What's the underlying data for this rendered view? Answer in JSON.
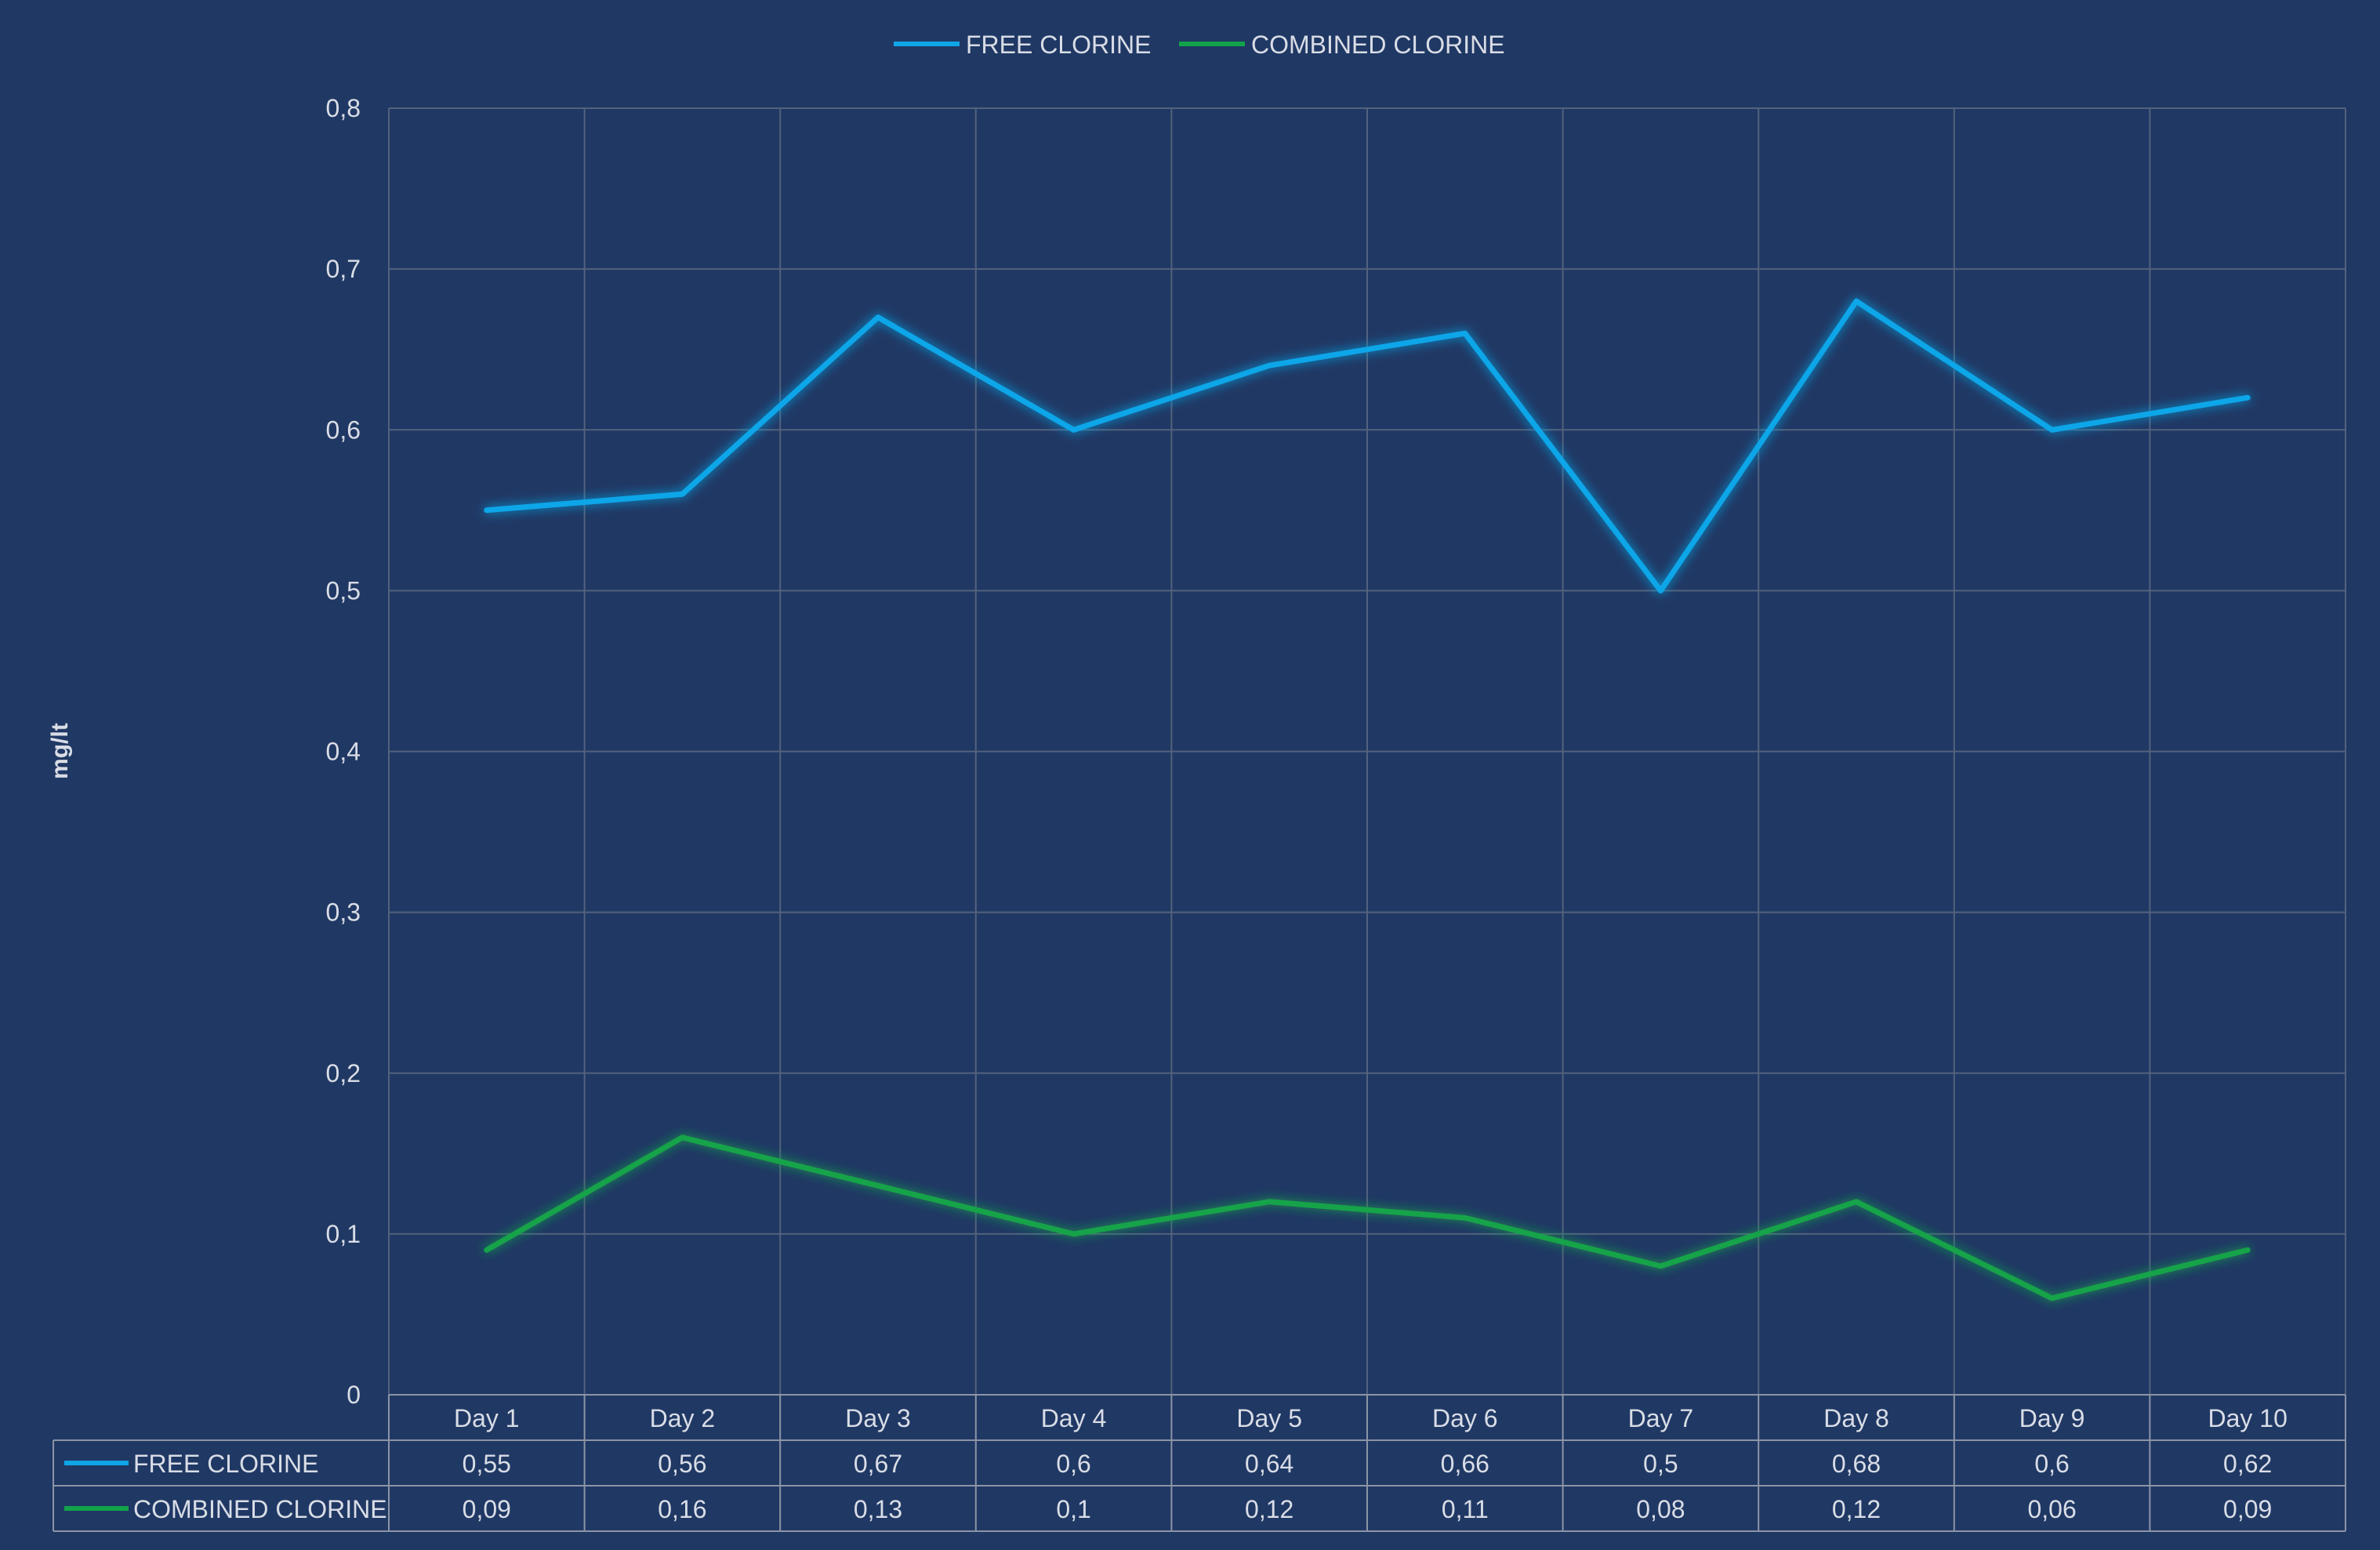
{
  "chart_data": {
    "type": "line",
    "title": "",
    "ylabel": "mg/lt",
    "xlabel": "",
    "ylim": [
      0,
      0.8
    ],
    "yticks": [
      "0",
      "0,1",
      "0,2",
      "0,3",
      "0,4",
      "0,5",
      "0,6",
      "0,7",
      "0,8"
    ],
    "categories": [
      "Day 1",
      "Day 2",
      "Day 3",
      "Day 4",
      "Day 5",
      "Day 6",
      "Day 7",
      "Day 8",
      "Day 9",
      "Day 10"
    ],
    "grid": true,
    "legend": "top-center",
    "data_table": true,
    "series": [
      {
        "name": "FREE CLORINE",
        "color": "#0fa6e8",
        "values": [
          0.55,
          0.56,
          0.67,
          0.6,
          0.64,
          0.66,
          0.5,
          0.68,
          0.6,
          0.62
        ],
        "labels": [
          "0,55",
          "0,56",
          "0,67",
          "0,6",
          "0,64",
          "0,66",
          "0,5",
          "0,68",
          "0,6",
          "0,62"
        ]
      },
      {
        "name": "COMBINED CLORINE",
        "color": "#12a34a",
        "values": [
          0.09,
          0.16,
          0.13,
          0.1,
          0.12,
          0.11,
          0.08,
          0.12,
          0.06,
          0.09
        ],
        "labels": [
          "0,09",
          "0,16",
          "0,13",
          "0,1",
          "0,12",
          "0,11",
          "0,08",
          "0,12",
          "0,06",
          "0,09"
        ]
      }
    ]
  }
}
